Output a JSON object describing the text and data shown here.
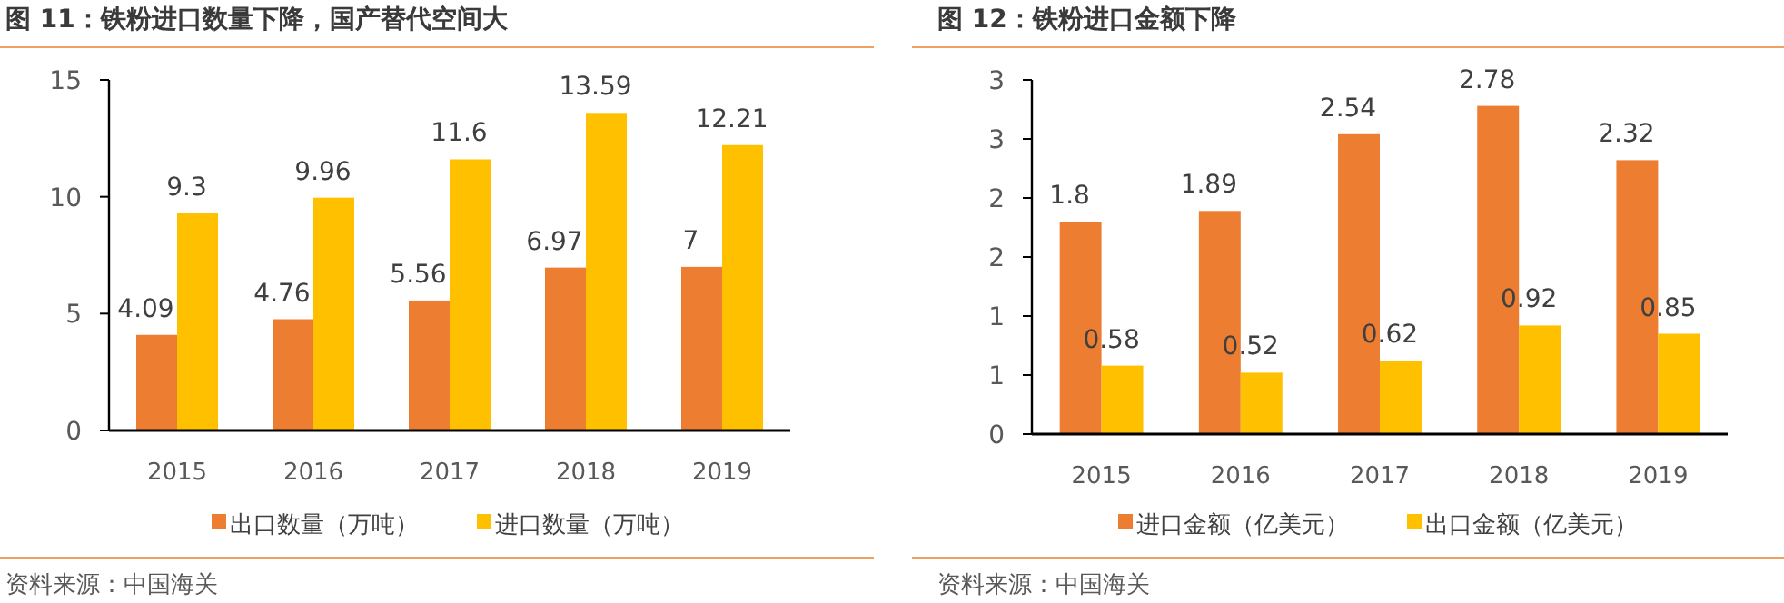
{
  "chart_data": [
    {
      "type": "bar",
      "title": "图 11：铁粉进口数量下降，国产替代空间大",
      "categories": [
        "2015",
        "2016",
        "2017",
        "2018",
        "2019"
      ],
      "series": [
        {
          "name": "出口数量（万吨）",
          "color": "#ED7D31",
          "values": [
            4.09,
            4.76,
            5.56,
            6.97,
            7
          ]
        },
        {
          "name": "进口数量（万吨）",
          "color": "#FFC000",
          "values": [
            9.3,
            9.96,
            11.6,
            13.59,
            12.21
          ]
        }
      ],
      "ylim": [
        0,
        15
      ],
      "yticks": [
        0,
        5,
        10,
        15
      ],
      "data_labels": true,
      "legend": "bottom",
      "annotations": [
        "资料来源：中国海关"
      ]
    },
    {
      "type": "bar",
      "title": "图 12：铁粉进口金额下降",
      "categories": [
        "2015",
        "2016",
        "2017",
        "2018",
        "2019"
      ],
      "series": [
        {
          "name": "进口金额（亿美元）",
          "color": "#ED7D31",
          "values": [
            1.8,
            1.89,
            2.54,
            2.78,
            2.32
          ]
        },
        {
          "name": "出口金额（亿美元）",
          "color": "#FFC000",
          "values": [
            0.58,
            0.52,
            0.62,
            0.92,
            0.85
          ]
        }
      ],
      "ylim": [
        0,
        3
      ],
      "yticks": [
        0,
        {
          "value": 0.5,
          "label": "1"
        },
        {
          "value": 1,
          "label": "1"
        },
        {
          "value": 1.5,
          "label": "2"
        },
        {
          "value": 2,
          "label": "2"
        },
        {
          "value": 2.5,
          "label": "3"
        },
        {
          "value": 3,
          "label": "3"
        }
      ],
      "data_labels": true,
      "legend": "bottom",
      "annotations": [
        "资料来源：中国海关"
      ]
    }
  ]
}
